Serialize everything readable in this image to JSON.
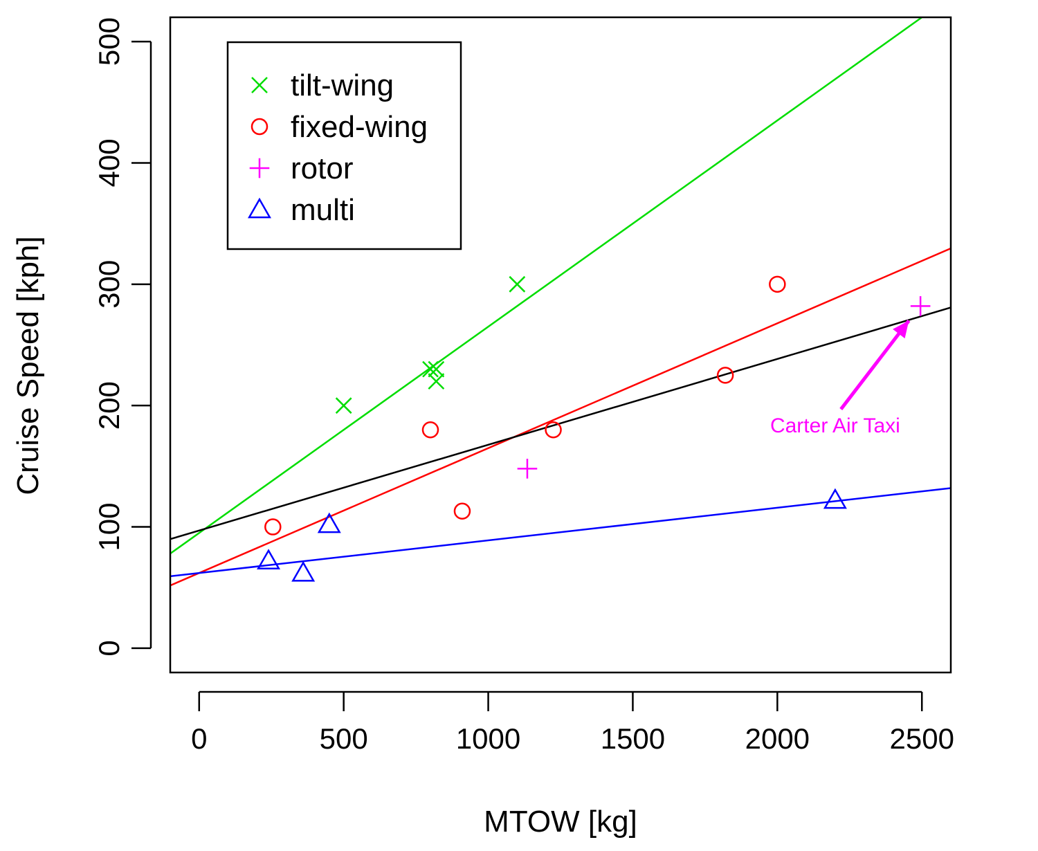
{
  "chart_data": {
    "type": "scatter",
    "title": "",
    "xlabel": "MTOW [kg]",
    "ylabel": "Cruise Speed [kph]",
    "xlim": [
      -100,
      2600
    ],
    "ylim": [
      -20,
      520
    ],
    "xticks": [
      0,
      500,
      1000,
      1500,
      2000,
      2500
    ],
    "yticks": [
      0,
      100,
      200,
      300,
      400,
      500
    ],
    "grid": false,
    "legend_position": "top-left",
    "series": [
      {
        "name": "tilt-wing",
        "color": "#00dd00",
        "marker": "x",
        "points": [
          [
            500,
            200
          ],
          [
            800,
            230
          ],
          [
            820,
            220
          ],
          [
            820,
            230
          ],
          [
            1100,
            300
          ]
        ],
        "fit": {
          "intercept": 95,
          "slope": 0.17
        }
      },
      {
        "name": "fixed-wing",
        "color": "#ff0000",
        "marker": "circle",
        "points": [
          [
            255,
            100
          ],
          [
            800,
            180
          ],
          [
            910,
            113
          ],
          [
            1225,
            180
          ],
          [
            1820,
            225
          ],
          [
            2000,
            300
          ]
        ],
        "fit": {
          "intercept": 62,
          "slope": 0.1029
        }
      },
      {
        "name": "rotor",
        "color": "#ff00ff",
        "marker": "plus",
        "points": [
          [
            1135,
            148
          ],
          [
            2495,
            282
          ]
        ],
        "fit": null
      },
      {
        "name": "multi",
        "color": "#0000ff",
        "marker": "triangle",
        "points": [
          [
            240,
            72
          ],
          [
            360,
            62
          ],
          [
            450,
            102
          ],
          [
            2200,
            122
          ]
        ],
        "fit": {
          "intercept": 62,
          "slope": 0.0269
        }
      }
    ],
    "overall_fit": {
      "color": "#000000",
      "intercept": 97,
      "slope": 0.0707
    },
    "annotations": [
      {
        "text": "Carter Air Taxi",
        "color": "#ff00ff",
        "text_at": [
          2200,
          178
        ],
        "arrow_from": [
          2220,
          197
        ],
        "arrow_to": [
          2455,
          270
        ]
      }
    ]
  }
}
